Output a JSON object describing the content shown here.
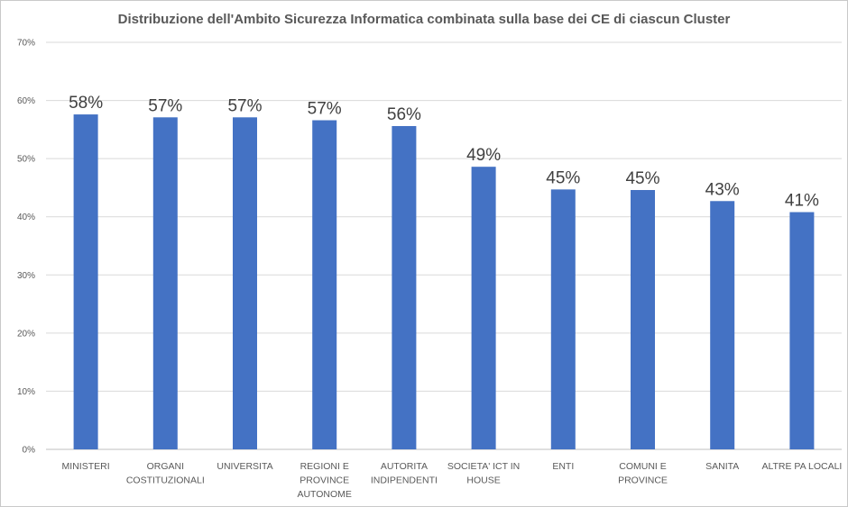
{
  "chart_data": {
    "type": "bar",
    "title": "Distribuzione dell'Ambito Sicurezza Informatica combinata sulla base dei CE di ciascun Cluster",
    "categories": [
      [
        "MINISTERI"
      ],
      [
        "ORGANI",
        "COSTITUZIONALI"
      ],
      [
        "UNIVERSITA"
      ],
      [
        "REGIONI E",
        "PROVINCE",
        "AUTONOME"
      ],
      [
        "AUTORITA",
        "INDIPENDENTI"
      ],
      [
        "SOCIETA' ICT IN",
        "HOUSE"
      ],
      [
        "ENTI"
      ],
      [
        "COMUNI E",
        "PROVINCE"
      ],
      [
        "SANITA"
      ],
      [
        "ALTRE PA LOCALI"
      ]
    ],
    "values": [
      57.6,
      57.1,
      57.1,
      56.6,
      55.6,
      48.6,
      44.7,
      44.6,
      42.7,
      40.8
    ],
    "data_labels": [
      "58%",
      "57%",
      "57%",
      "57%",
      "56%",
      "49%",
      "45%",
      "45%",
      "43%",
      "41%"
    ],
    "ylim": [
      0,
      70
    ],
    "yticks": [
      0,
      10,
      20,
      30,
      40,
      50,
      60,
      70
    ],
    "ytick_labels": [
      "0%",
      "10%",
      "20%",
      "30%",
      "40%",
      "50%",
      "60%",
      "70%"
    ],
    "grid": true,
    "legend": "none",
    "bar_color": "#4472C4",
    "grid_color": "#d9d9d9"
  }
}
